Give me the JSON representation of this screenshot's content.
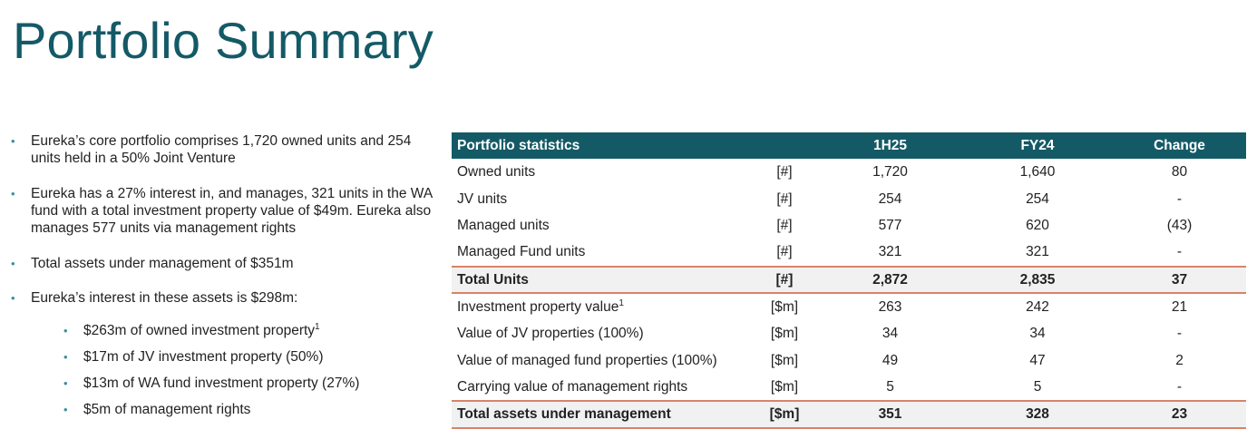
{
  "title": "Portfolio Summary",
  "bullets": [
    "Eureka’s core portfolio comprises 1,720 owned units and 254 units held in a 50% Joint Venture",
    "Eureka has a 27% interest in, and manages, 321 units in the WA fund with a total investment property value of $49m. Eureka also manages 577 units via management rights",
    "Total assets under management of $351m",
    "Eureka’s interest in these assets is $298m:"
  ],
  "sub_bullets": [
    {
      "text": "$263m of owned investment property",
      "sup": "1"
    },
    {
      "text": "$17m of JV investment property (50%)",
      "sup": ""
    },
    {
      "text": "$13m of WA fund investment property (27%)",
      "sup": ""
    },
    {
      "text": "$5m of management rights",
      "sup": ""
    }
  ],
  "bullet_symbol": "•",
  "table": {
    "headers": [
      "Portfolio statistics",
      "",
      "1H25",
      "FY24",
      "Change"
    ],
    "rows": [
      {
        "label": "Owned units",
        "sup": "",
        "unit": "[#]",
        "h1": "1,720",
        "fy": "1,640",
        "chg": "80"
      },
      {
        "label": "JV units",
        "sup": "",
        "unit": "[#]",
        "h1": "254",
        "fy": "254",
        "chg": "-"
      },
      {
        "label": "Managed units",
        "sup": "",
        "unit": "[#]",
        "h1": "577",
        "fy": "620",
        "chg": "(43)"
      },
      {
        "label": "Managed Fund units",
        "sup": "",
        "unit": "[#]",
        "h1": "321",
        "fy": "321",
        "chg": "-"
      },
      {
        "label": "Total Units",
        "sup": "",
        "unit": "[#]",
        "h1": "2,872",
        "fy": "2,835",
        "chg": "37"
      },
      {
        "label": "Investment property value",
        "sup": "1",
        "unit": "[$m]",
        "h1": "263",
        "fy": "242",
        "chg": "21"
      },
      {
        "label": "Value of JV properties (100%)",
        "sup": "",
        "unit": "[$m]",
        "h1": "34",
        "fy": "34",
        "chg": "-"
      },
      {
        "label": "Value of managed fund properties (100%)",
        "sup": "",
        "unit": "[$m]",
        "h1": "49",
        "fy": "47",
        "chg": "2"
      },
      {
        "label": "Carrying value of management rights",
        "sup": "",
        "unit": "[$m]",
        "h1": "5",
        "fy": "5",
        "chg": "-"
      },
      {
        "label": "Total assets under management",
        "sup": "",
        "unit": "[$m]",
        "h1": "351",
        "fy": "328",
        "chg": "23"
      }
    ]
  },
  "colors": {
    "accent": "#145a66",
    "total_rule": "#d9826a",
    "total_fill": "#f1f1f1",
    "bullet": "#3a8fa0"
  }
}
